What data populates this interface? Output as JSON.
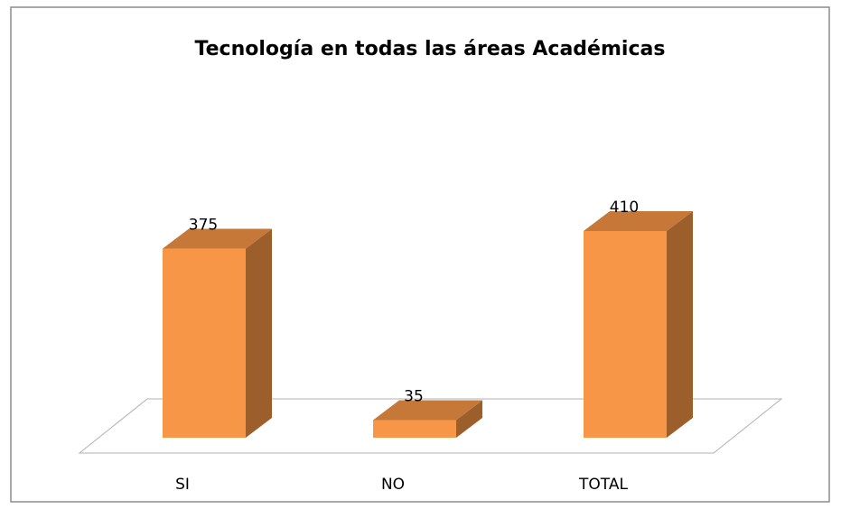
{
  "chart_data": {
    "type": "bar3d",
    "title": "Tecnología en todas las áreas Académicas",
    "categories": [
      "SI",
      "NO",
      "TOTAL"
    ],
    "values": [
      375,
      35,
      410
    ],
    "color": "#f79646"
  }
}
